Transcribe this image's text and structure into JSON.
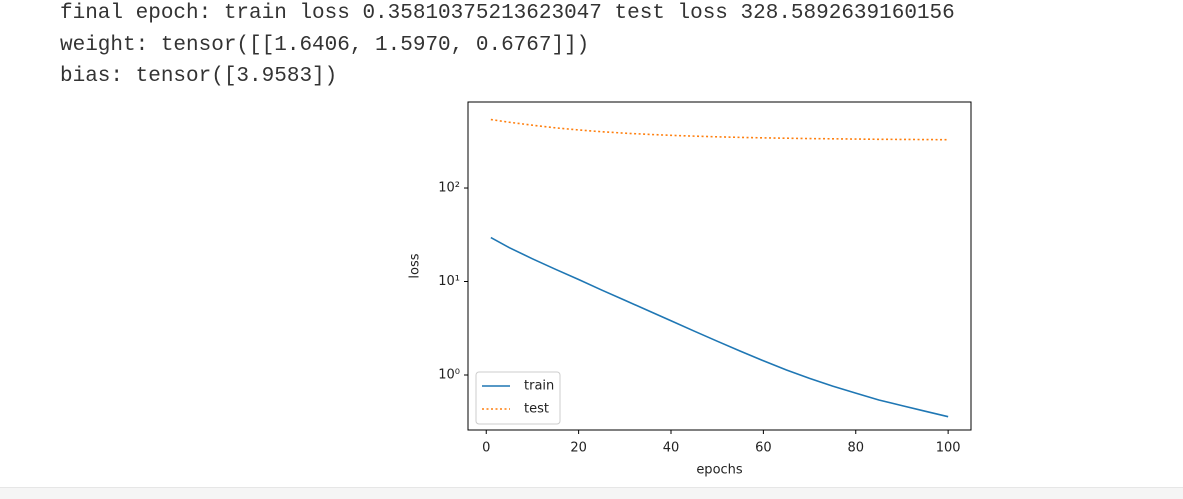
{
  "output_lines": [
    "final epoch: train loss 0.35810375213623047 test loss 328.5892639160156",
    "weight: tensor([[1.6406, 1.5970, 0.6767]])",
    "bias: tensor([3.9583])"
  ],
  "chart_data": {
    "type": "line",
    "xlabel": "epochs",
    "ylabel": "loss",
    "yscale": "log",
    "x": [
      1,
      5,
      10,
      15,
      20,
      25,
      30,
      35,
      40,
      45,
      50,
      55,
      60,
      65,
      70,
      75,
      80,
      85,
      90,
      95,
      100
    ],
    "series": [
      {
        "name": "train",
        "color": "#1f77b4",
        "linestyle": "solid",
        "values": [
          29.5,
          23,
          17.5,
          13.5,
          10.5,
          8.1,
          6.3,
          4.9,
          3.8,
          2.95,
          2.3,
          1.8,
          1.42,
          1.13,
          0.92,
          0.76,
          0.64,
          0.54,
          0.47,
          0.41,
          0.358
        ]
      },
      {
        "name": "test",
        "color": "#ff7f0e",
        "linestyle": "dotted",
        "values": [
          540,
          505,
          470,
          440,
          418,
          400,
          386,
          375,
          366,
          359,
          353,
          348,
          344,
          341,
          338,
          336,
          334,
          332,
          331,
          330,
          328.6
        ]
      }
    ],
    "xlim": [
      -3.95,
      104.95
    ],
    "xticks": [
      0,
      20,
      40,
      60,
      80,
      100
    ],
    "ylim": [
      0.258,
      832
    ],
    "yticks": [
      {
        "value": 1,
        "label": "10⁰"
      },
      {
        "value": 10,
        "label": "10¹"
      },
      {
        "value": 100,
        "label": "10²"
      }
    ],
    "legend": "lower left"
  }
}
